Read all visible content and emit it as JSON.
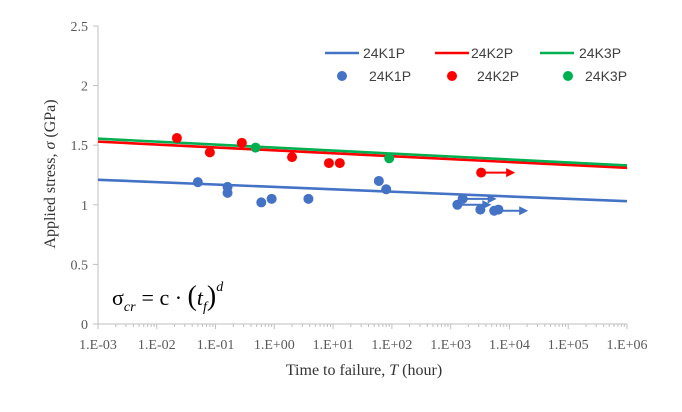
{
  "chart_data": {
    "type": "scatter",
    "xlabel_prefix": "Time to failure, ",
    "xlabel_var": "T",
    "xlabel_unit": " (hour)",
    "ylabel_prefix": "Applied stress, ",
    "ylabel_var": "σ",
    "ylabel_unit": " (GPa)",
    "x_scale": "log",
    "xlim": [
      0.001,
      1000000
    ],
    "ylim": [
      0,
      2.5
    ],
    "x_ticks": [
      "1.E-03",
      "1.E-02",
      "1.E-01",
      "1.E+00",
      "1.E+01",
      "1.E+02",
      "1.E+03",
      "1.E+04",
      "1.E+05",
      "1.E+06"
    ],
    "y_ticks": [
      "0",
      "0.5",
      "1",
      "1.5",
      "2",
      "2.5"
    ],
    "grid": false,
    "legend_position": "top-right",
    "equation": {
      "sigma": "σ",
      "sub_cr": "cr",
      "eq_c": "= c · ",
      "t": "t",
      "sub_f": "f",
      "exp_d": "d"
    },
    "fit_lines": [
      {
        "name": "24K1P",
        "color": "#4472C4",
        "x": [
          0.001,
          1000000
        ],
        "y": [
          1.21,
          1.03
        ]
      },
      {
        "name": "24K2P",
        "color": "#FF0000",
        "x": [
          0.001,
          1000000
        ],
        "y": [
          1.53,
          1.31
        ]
      },
      {
        "name": "24K3P",
        "color": "#00B050",
        "x": [
          0.001,
          1000000
        ],
        "y": [
          1.555,
          1.33
        ]
      }
    ],
    "series": [
      {
        "name": "24K1P",
        "color": "#4472C4",
        "points": [
          {
            "x": 0.05,
            "y": 1.19
          },
          {
            "x": 0.16,
            "y": 1.15
          },
          {
            "x": 0.16,
            "y": 1.1
          },
          {
            "x": 0.6,
            "y": 1.02
          },
          {
            "x": 0.9,
            "y": 1.05
          },
          {
            "x": 3.8,
            "y": 1.05
          },
          {
            "x": 60,
            "y": 1.2
          },
          {
            "x": 80,
            "y": 1.13
          },
          {
            "x": 1300,
            "y": 1.0,
            "runout": true
          },
          {
            "x": 1600,
            "y": 1.05,
            "runout": true
          },
          {
            "x": 3200,
            "y": 0.96
          },
          {
            "x": 5500,
            "y": 0.95,
            "runout": true
          },
          {
            "x": 6500,
            "y": 0.96
          }
        ]
      },
      {
        "name": "24K2P",
        "color": "#FF0000",
        "points": [
          {
            "x": 0.022,
            "y": 1.56
          },
          {
            "x": 0.08,
            "y": 1.44
          },
          {
            "x": 0.28,
            "y": 1.52
          },
          {
            "x": 2.0,
            "y": 1.4
          },
          {
            "x": 8.5,
            "y": 1.35
          },
          {
            "x": 13,
            "y": 1.35
          },
          {
            "x": 3300,
            "y": 1.27,
            "runout": true
          }
        ]
      },
      {
        "name": "24K3P",
        "color": "#00B050",
        "points": [
          {
            "x": 0.48,
            "y": 1.48
          },
          {
            "x": 90,
            "y": 1.39
          }
        ]
      }
    ]
  }
}
